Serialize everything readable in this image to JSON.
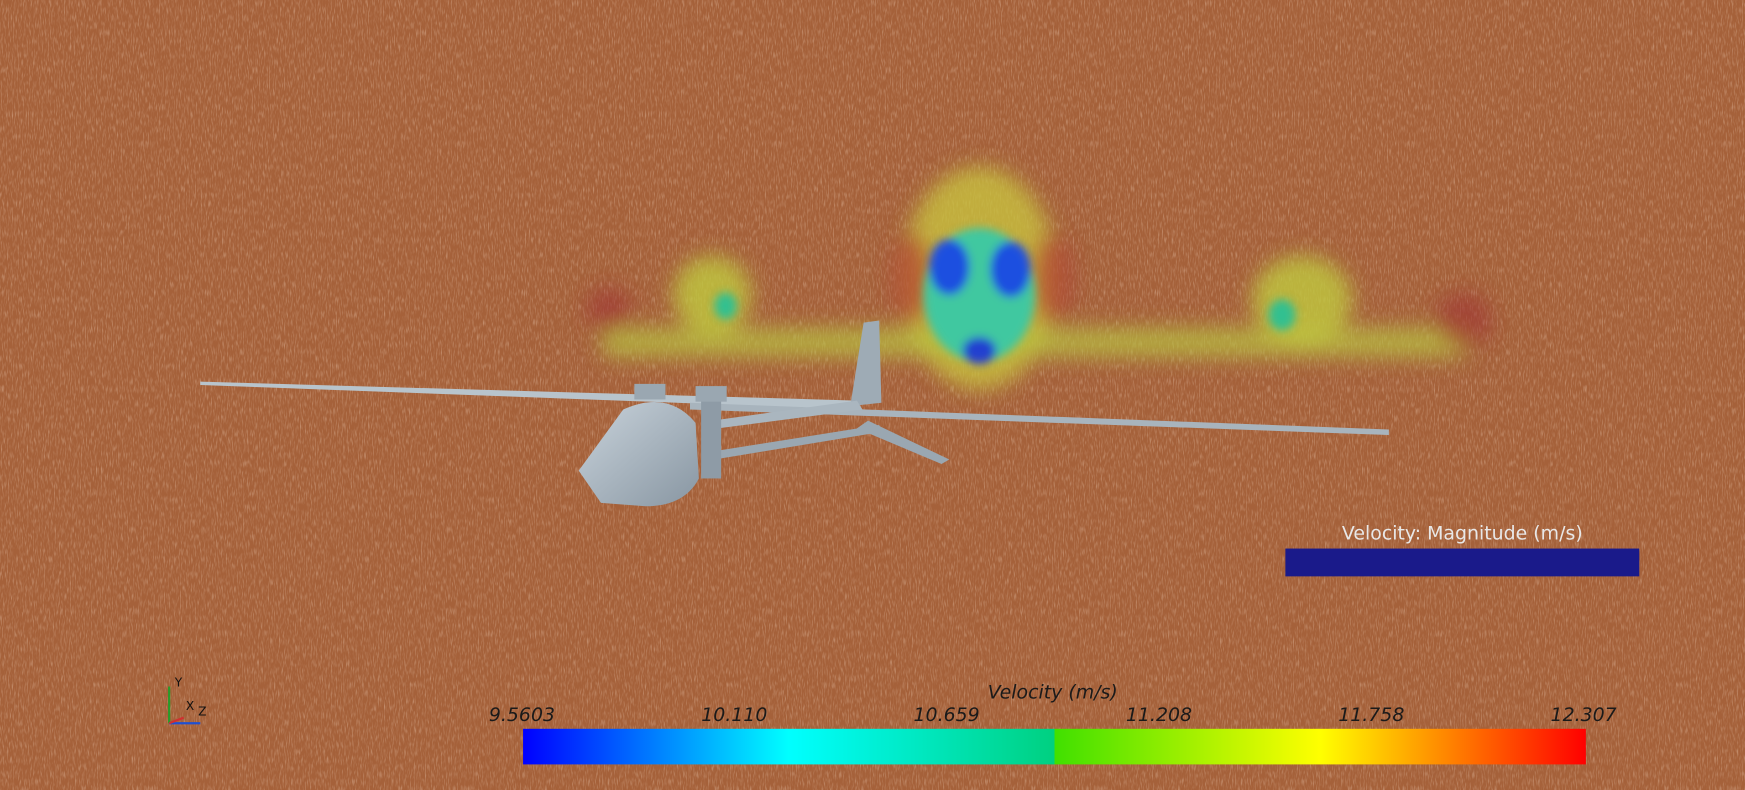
{
  "scene_legend": {
    "title": "Velocity: Magnitude (m/s)"
  },
  "colorbar": {
    "title": "Velocity (m/s)",
    "ticks": [
      "9.5603",
      "10.110",
      "10.659",
      "11.208",
      "11.758",
      "12.307"
    ]
  },
  "axis_triad": {
    "labels": [
      "Y",
      "X",
      "Z"
    ]
  }
}
